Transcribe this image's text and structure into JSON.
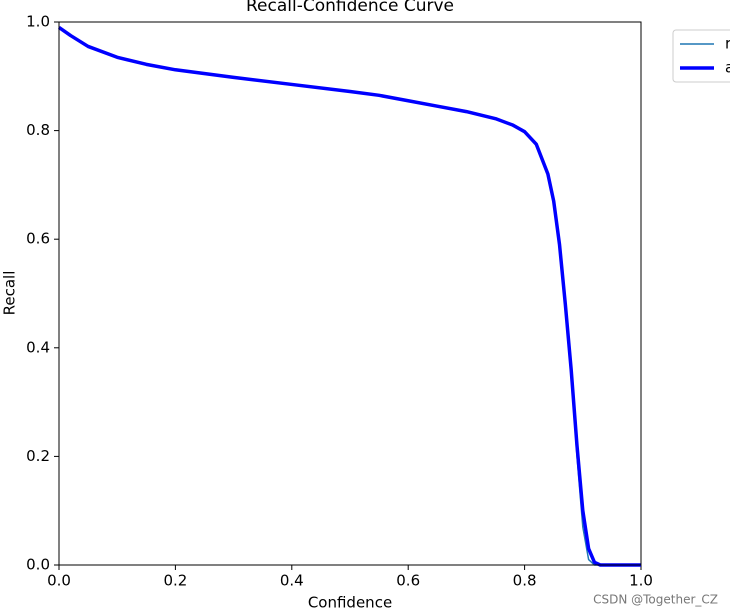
{
  "chart_data": {
    "type": "line",
    "title": "Recall-Confidence Curve",
    "x_label": "Confidence",
    "y_label": "Recall",
    "x": [
      0,
      0.02,
      0.05,
      0.1,
      0.15,
      0.2,
      0.3,
      0.4,
      0.5,
      0.55,
      0.6,
      0.65,
      0.7,
      0.75,
      0.78,
      0.8,
      0.82,
      0.84,
      0.85,
      0.86,
      0.87,
      0.88,
      0.89,
      0.9,
      0.91,
      0.92,
      0.93,
      0.95,
      1.0
    ],
    "series": [
      {
        "name": "r",
        "color": "#1f77b4",
        "width": 1.5,
        "values": [
          0.99,
          0.975,
          0.955,
          0.935,
          0.922,
          0.912,
          0.898,
          0.885,
          0.872,
          0.865,
          0.855,
          0.845,
          0.835,
          0.822,
          0.81,
          0.798,
          0.775,
          0.72,
          0.67,
          0.59,
          0.48,
          0.36,
          0.2,
          0.07,
          0.01,
          0,
          0,
          0,
          0
        ]
      },
      {
        "name": "a",
        "color": "#0000ff",
        "width": 3.5,
        "values": [
          0.99,
          0.975,
          0.955,
          0.935,
          0.922,
          0.912,
          0.898,
          0.885,
          0.872,
          0.865,
          0.855,
          0.845,
          0.835,
          0.822,
          0.81,
          0.798,
          0.775,
          0.72,
          0.67,
          0.59,
          0.48,
          0.36,
          0.22,
          0.1,
          0.03,
          0.005,
          0,
          0,
          0
        ]
      }
    ],
    "xlim": [
      0,
      1
    ],
    "ylim": [
      0,
      1
    ],
    "xticks": [
      {
        "value": 0,
        "label": "0.0"
      },
      0.2,
      0.4,
      0.6,
      0.8,
      {
        "value": 1,
        "label": "1.0"
      }
    ],
    "yticks": [
      {
        "value": 0,
        "label": "0.0"
      },
      0.2,
      0.4,
      0.6,
      0.8,
      {
        "value": 1,
        "label": "1.0"
      }
    ],
    "legend": "outside-right",
    "grid": false
  },
  "watermark": "CSDN @Together_CZ"
}
